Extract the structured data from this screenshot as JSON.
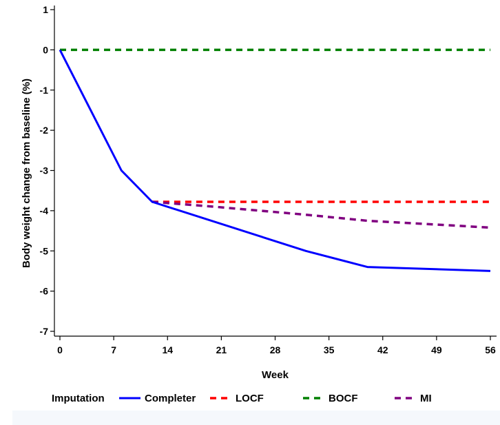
{
  "chart_data": {
    "type": "line",
    "xlabel": "Week",
    "ylabel": "Body weight change from baseline (%)",
    "xlim": [
      0,
      56
    ],
    "ylim": [
      -7,
      1
    ],
    "xticks": [
      0,
      7,
      14,
      21,
      28,
      35,
      42,
      49,
      56
    ],
    "yticks": [
      1,
      0,
      -1,
      -2,
      -3,
      -4,
      -5,
      -6,
      -7
    ],
    "grid": false,
    "legend": {
      "title": "Imputation",
      "placement": "bottom"
    },
    "series": [
      {
        "name": "Completer",
        "color": "#0000ff",
        "dash": "solid",
        "points": [
          [
            0,
            0
          ],
          [
            8,
            -3.0
          ],
          [
            12,
            -3.78
          ],
          [
            32,
            -5.0
          ],
          [
            40,
            -5.4
          ],
          [
            56,
            -5.5
          ]
        ]
      },
      {
        "name": "LOCF",
        "color": "#ff0000",
        "dash": "dashed",
        "points": [
          [
            12,
            -3.78
          ],
          [
            56,
            -3.78
          ]
        ]
      },
      {
        "name": "BOCF",
        "color": "#008000",
        "dash": "dashed",
        "points": [
          [
            0,
            0
          ],
          [
            56,
            0
          ]
        ]
      },
      {
        "name": "MI",
        "color": "#800080",
        "dash": "dashed",
        "points": [
          [
            12,
            -3.78
          ],
          [
            20,
            -3.9
          ],
          [
            32,
            -4.1
          ],
          [
            40,
            -4.25
          ],
          [
            56,
            -4.42
          ]
        ]
      }
    ]
  }
}
